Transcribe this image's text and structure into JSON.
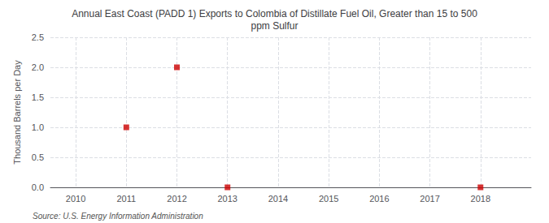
{
  "chart_data": {
    "type": "scatter",
    "title": "Annual East Coast (PADD 1) Exports to Colombia of Distillate Fuel Oil, Greater than 15 to 500\nppm Sulfur",
    "ylabel": "Thousand Barrels per Day",
    "annotations": [
      "Source: U.S. Energy Information Administration"
    ],
    "x": [
      2011,
      2012,
      2013,
      2018
    ],
    "values": [
      1.0,
      2.0,
      0.0,
      0.0
    ],
    "color": "#cc0000",
    "marker": "square",
    "xlim": [
      2009.5,
      2019.0
    ],
    "xticks": [
      2010,
      2011,
      2012,
      2013,
      2014,
      2015,
      2016,
      2017,
      2018
    ],
    "ylim": [
      0.0,
      2.5
    ],
    "yticks": [
      {
        "value": 0.0,
        "label": "0.0"
      },
      0.5,
      {
        "value": 1.0,
        "label": "1.0"
      },
      1.5,
      {
        "value": 2.0,
        "label": "2.0"
      },
      2.5
    ],
    "grid": true
  }
}
